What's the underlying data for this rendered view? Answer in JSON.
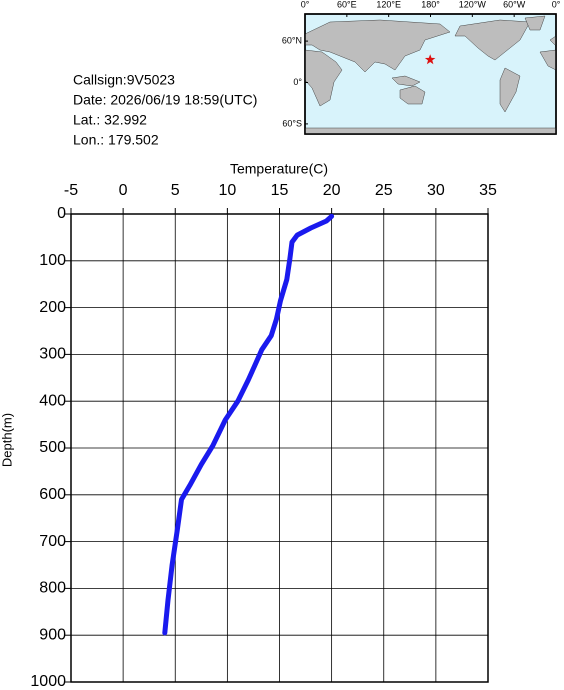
{
  "info": [
    "Callsign:9V5023",
    "Date:  2026/06/19 18:59(UTC)",
    "Lat.:  32.992",
    "Lon.:  179.502"
  ],
  "map": {
    "marker": {
      "lon": 179.502,
      "lat": 32.992,
      "color": "#dd1111"
    },
    "lonticks": [
      {
        "value": 0,
        "label": "0°"
      },
      {
        "value": 60,
        "label": "60°E"
      },
      {
        "value": 120,
        "label": "120°E"
      },
      {
        "value": 180,
        "label": "180°"
      },
      {
        "value": 240,
        "label": "120°W"
      },
      {
        "value": 300,
        "label": "60°W"
      },
      {
        "value": 360,
        "label": "0°"
      }
    ],
    "latticks": [
      {
        "value": 60,
        "label": "60°N"
      },
      {
        "value": 0,
        "label": "0°"
      },
      {
        "value": -60,
        "label": "60°S"
      }
    ]
  },
  "chart_data": {
    "type": "line",
    "xlabel": "Temperature(C)",
    "ylabel": "Depth(m)",
    "x": [
      20.0,
      19.5,
      18.0,
      16.7,
      16.2,
      16.0,
      15.7,
      15.1,
      14.7,
      14.2,
      13.3,
      12.6,
      12.0,
      11.0,
      9.8,
      8.6,
      7.5,
      6.4,
      5.6,
      5.2,
      4.7,
      4.3,
      4.0
    ],
    "y": [
      5,
      15,
      30,
      45,
      60,
      95,
      140,
      185,
      225,
      260,
      290,
      325,
      355,
      400,
      440,
      495,
      535,
      580,
      610,
      675,
      750,
      825,
      895
    ],
    "color": "#1a1aee",
    "xlim": [
      -5,
      35
    ],
    "xticks": [
      -5,
      0,
      5,
      10,
      15,
      20,
      25,
      30,
      35
    ],
    "ylim": [
      0,
      1000
    ],
    "yticks": [
      0,
      100,
      200,
      300,
      400,
      500,
      600,
      700,
      800,
      900,
      1000
    ],
    "y_inverted": true,
    "grid": true
  }
}
